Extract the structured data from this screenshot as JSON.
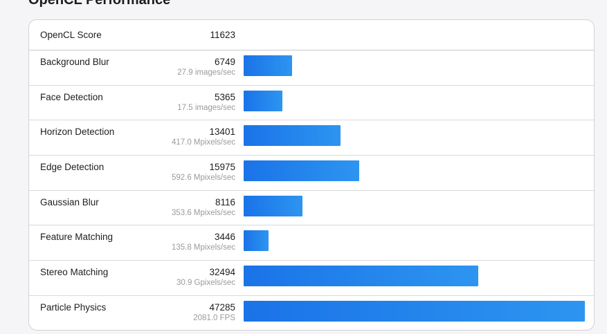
{
  "section": {
    "title": "OpenCL Performance"
  },
  "score": {
    "label": "OpenCL Score",
    "value": "11623"
  },
  "benchmarks": [
    {
      "name": "Background Blur",
      "score": "6749",
      "rate": "27.9 images/sec",
      "fraction": 0.1427
    },
    {
      "name": "Face Detection",
      "score": "5365",
      "rate": "17.5 images/sec",
      "fraction": 0.1135
    },
    {
      "name": "Horizon Detection",
      "score": "13401",
      "rate": "417.0 Mpixels/sec",
      "fraction": 0.2834
    },
    {
      "name": "Edge Detection",
      "score": "15975",
      "rate": "592.6 Mpixels/sec",
      "fraction": 0.3378
    },
    {
      "name": "Gaussian Blur",
      "score": "8116",
      "rate": "353.6 Mpixels/sec",
      "fraction": 0.1716
    },
    {
      "name": "Feature Matching",
      "score": "3446",
      "rate": "135.8 Mpixels/sec",
      "fraction": 0.0729
    },
    {
      "name": "Stereo Matching",
      "score": "32494",
      "rate": "30.9 Gpixels/sec",
      "fraction": 0.6872
    },
    {
      "name": "Particle Physics",
      "score": "47285",
      "rate": "2081.0 FPS",
      "fraction": 1.0
    }
  ],
  "colors": {
    "bar_start": "#1a73e8",
    "bar_end": "#2d95f0"
  }
}
